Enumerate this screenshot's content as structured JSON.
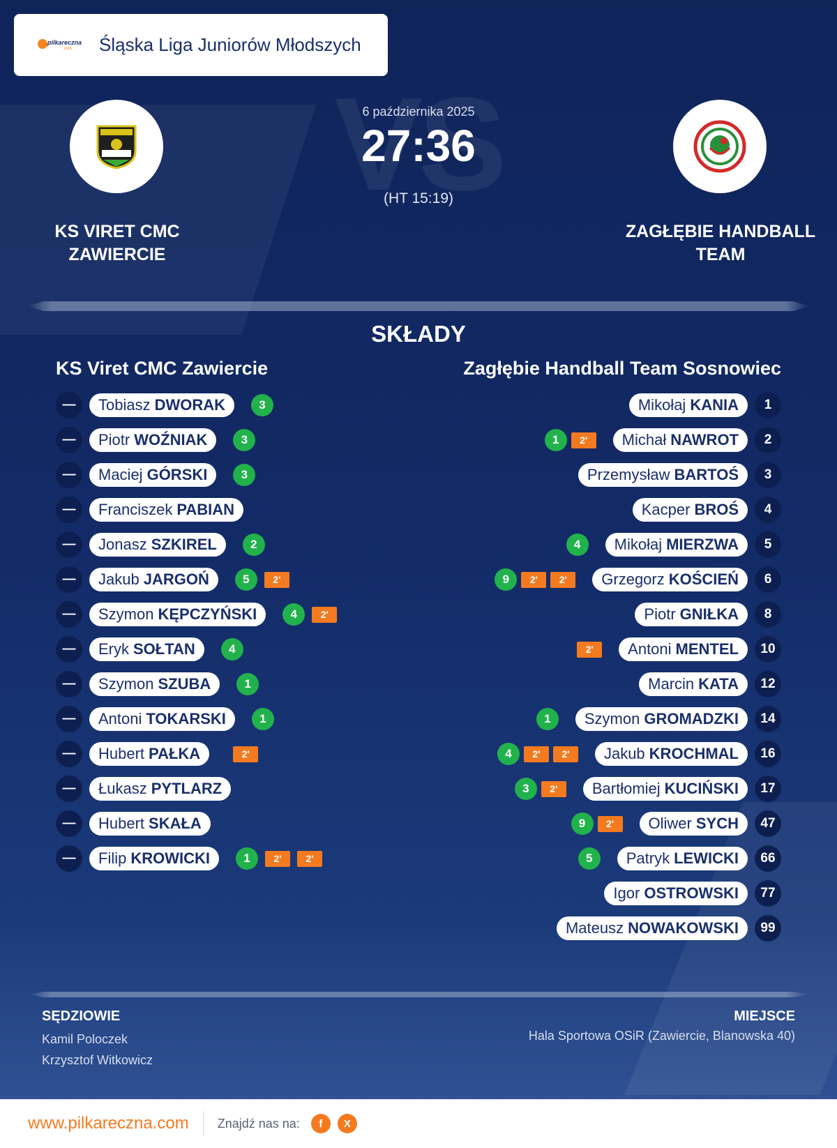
{
  "league": {
    "name": "Śląska Liga Juniorów Młodszych",
    "logo_text": "pilkareczna",
    "logo_sub": ".com"
  },
  "match": {
    "date": "6 października 2025",
    "score": "27:36",
    "half_time": "(HT 15:19)",
    "vs_text": "VS"
  },
  "home": {
    "name": "KS VIRET CMC ZAWIERCIE",
    "roster_title": "KS Viret CMC Zawiercie",
    "logo_text": "VIRET"
  },
  "away": {
    "name": "ZAGŁĘBIE HANDBALL TEAM",
    "roster_title": "Zagłębie Handball Team Sosnowiec",
    "logo_text": "SOSNOWIEC"
  },
  "section_title": "SKŁADY",
  "home_players": [
    {
      "num": "—",
      "first": "Tobiasz",
      "last": "DWORAK",
      "goals": "3",
      "susp": []
    },
    {
      "num": "—",
      "first": "Piotr",
      "last": "WOŹNIAK",
      "goals": "3",
      "susp": []
    },
    {
      "num": "—",
      "first": "Maciej",
      "last": "GÓRSKI",
      "goals": "3",
      "susp": []
    },
    {
      "num": "—",
      "first": "Franciszek",
      "last": "PABIAN",
      "goals": "",
      "susp": []
    },
    {
      "num": "—",
      "first": "Jonasz",
      "last": "SZKIREL",
      "goals": "2",
      "susp": []
    },
    {
      "num": "—",
      "first": "Jakub",
      "last": "JARGOŃ",
      "goals": "5",
      "susp": [
        "2'"
      ]
    },
    {
      "num": "—",
      "first": "Szymon",
      "last": "KĘPCZYŃSKI",
      "goals": "4",
      "susp": [
        "2'"
      ]
    },
    {
      "num": "—",
      "first": "Eryk",
      "last": "SOŁTAN",
      "goals": "4",
      "susp": []
    },
    {
      "num": "—",
      "first": "Szymon",
      "last": "SZUBA",
      "goals": "1",
      "susp": []
    },
    {
      "num": "—",
      "first": "Antoni",
      "last": "TOKARSKI",
      "goals": "1",
      "susp": []
    },
    {
      "num": "—",
      "first": "Hubert",
      "last": "PAŁKA",
      "goals": "",
      "susp": [
        "2'"
      ]
    },
    {
      "num": "—",
      "first": "Łukasz",
      "last": "PYTLARZ",
      "goals": "",
      "susp": []
    },
    {
      "num": "—",
      "first": "Hubert",
      "last": "SKAŁA",
      "goals": "",
      "susp": []
    },
    {
      "num": "—",
      "first": "Filip",
      "last": "KROWICKI",
      "goals": "1",
      "susp": [
        "2'",
        "2'"
      ]
    }
  ],
  "away_players": [
    {
      "num": "1",
      "first": "Mikołaj",
      "last": "KANIA",
      "goals": "",
      "susp": []
    },
    {
      "num": "2",
      "first": "Michał",
      "last": "NAWROT",
      "goals": "1",
      "susp": [
        "2'"
      ]
    },
    {
      "num": "3",
      "first": "Przemysław",
      "last": "BARTOŚ",
      "goals": "",
      "susp": []
    },
    {
      "num": "4",
      "first": "Kacper",
      "last": "BROŚ",
      "goals": "",
      "susp": []
    },
    {
      "num": "5",
      "first": "Mikołaj",
      "last": "MIERZWA",
      "goals": "4",
      "susp": []
    },
    {
      "num": "6",
      "first": "Grzegorz",
      "last": "KOŚCIEŃ",
      "goals": "9",
      "susp": [
        "2'",
        "2'"
      ]
    },
    {
      "num": "8",
      "first": "Piotr",
      "last": "GNIŁKA",
      "goals": "",
      "susp": []
    },
    {
      "num": "10",
      "first": "Antoni",
      "last": "MENTEL",
      "goals": "",
      "susp": [
        "2'"
      ]
    },
    {
      "num": "12",
      "first": "Marcin",
      "last": "KATA",
      "goals": "",
      "susp": []
    },
    {
      "num": "14",
      "first": "Szymon",
      "last": "GROMADZKI",
      "goals": "1",
      "susp": []
    },
    {
      "num": "16",
      "first": "Jakub",
      "last": "KROCHMAL",
      "goals": "4",
      "susp": [
        "2'",
        "2'"
      ]
    },
    {
      "num": "17",
      "first": "Bartłomiej",
      "last": "KUCIŃSKI",
      "goals": "3",
      "susp": [
        "2'"
      ]
    },
    {
      "num": "47",
      "first": "Oliwer",
      "last": "SYCH",
      "goals": "9",
      "susp": [
        "2'"
      ]
    },
    {
      "num": "66",
      "first": "Patryk",
      "last": "LEWICKI",
      "goals": "5",
      "susp": []
    },
    {
      "num": "77",
      "first": "Igor",
      "last": "OSTROWSKI",
      "goals": "",
      "susp": []
    },
    {
      "num": "99",
      "first": "Mateusz",
      "last": "NOWAKOWSKI",
      "goals": "",
      "susp": []
    }
  ],
  "referees": {
    "label": "SĘDZIOWIE",
    "names": [
      "Kamil Poloczek",
      "Krzysztof Witkowicz"
    ]
  },
  "venue": {
    "label": "MIEJSCE",
    "value": "Hala Sportowa OSiR (Zawiercie, Blanowska 40)"
  },
  "footer": {
    "site": "www.pilkareczna.com",
    "find_us": "Znajdź nas na:",
    "social": [
      "f",
      "X"
    ]
  },
  "icons": {
    "facebook": "facebook-icon",
    "x": "x-icon",
    "handball": "handball-icon"
  },
  "colors": {
    "goal": "#22b24c",
    "suspension": "#f47a20",
    "accent": "#f47a20",
    "navy": "#0d1f50"
  }
}
